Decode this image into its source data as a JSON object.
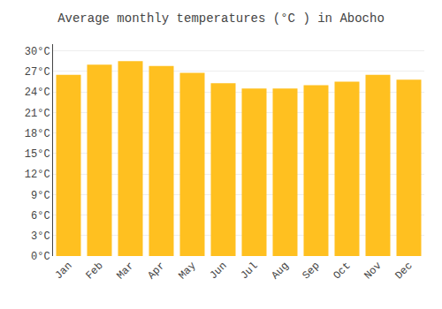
{
  "chart_data": {
    "type": "bar",
    "title": "Average monthly temperatures (°C ) in Abocho",
    "categories": [
      "Jan",
      "Feb",
      "Mar",
      "Apr",
      "May",
      "Jun",
      "Jul",
      "Aug",
      "Sep",
      "Oct",
      "Nov",
      "Dec"
    ],
    "values": [
      26.5,
      28.0,
      28.5,
      27.8,
      26.8,
      25.3,
      24.5,
      24.5,
      25.0,
      25.5,
      26.5,
      25.8
    ],
    "color": "#FFC020",
    "ylim": [
      0,
      31
    ],
    "yticks": [
      {
        "value": 0,
        "label": "0°C"
      },
      {
        "value": 3,
        "label": "3°C"
      },
      {
        "value": 6,
        "label": "6°C"
      },
      {
        "value": 9,
        "label": "9°C"
      },
      {
        "value": 12,
        "label": "12°C"
      },
      {
        "value": 15,
        "label": "15°C"
      },
      {
        "value": 18,
        "label": "18°C"
      },
      {
        "value": 21,
        "label": "21°C"
      },
      {
        "value": 24,
        "label": "24°C"
      },
      {
        "value": 27,
        "label": "27°C"
      },
      {
        "value": 30,
        "label": "30°C"
      }
    ],
    "grid": true
  }
}
